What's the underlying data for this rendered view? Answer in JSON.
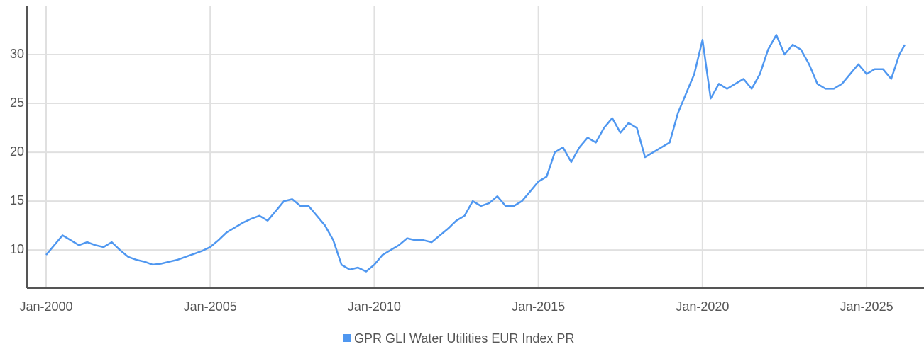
{
  "chart_data": {
    "type": "line",
    "x": [
      "2000-01",
      "2000-04",
      "2000-07",
      "2000-10",
      "2001-01",
      "2001-04",
      "2001-07",
      "2001-10",
      "2002-01",
      "2002-04",
      "2002-07",
      "2002-10",
      "2003-01",
      "2003-04",
      "2003-07",
      "2003-10",
      "2004-01",
      "2004-04",
      "2004-07",
      "2004-10",
      "2005-01",
      "2005-04",
      "2005-07",
      "2005-10",
      "2006-01",
      "2006-04",
      "2006-07",
      "2006-10",
      "2007-01",
      "2007-04",
      "2007-07",
      "2007-10",
      "2008-01",
      "2008-04",
      "2008-07",
      "2008-10",
      "2009-01",
      "2009-04",
      "2009-07",
      "2009-10",
      "2010-01",
      "2010-04",
      "2010-07",
      "2010-10",
      "2011-01",
      "2011-04",
      "2011-07",
      "2011-10",
      "2012-01",
      "2012-04",
      "2012-07",
      "2012-10",
      "2013-01",
      "2013-04",
      "2013-07",
      "2013-10",
      "2014-01",
      "2014-04",
      "2014-07",
      "2014-10",
      "2015-01",
      "2015-04",
      "2015-07",
      "2015-10",
      "2016-01",
      "2016-04",
      "2016-07",
      "2016-10",
      "2017-01",
      "2017-04",
      "2017-07",
      "2017-10",
      "2018-01",
      "2018-04",
      "2018-07",
      "2018-10",
      "2019-01",
      "2019-04",
      "2019-07",
      "2019-10",
      "2020-01",
      "2020-04",
      "2020-07",
      "2020-10",
      "2021-01",
      "2021-04",
      "2021-07",
      "2021-10",
      "2022-01",
      "2022-04",
      "2022-07",
      "2022-10",
      "2023-01",
      "2023-04",
      "2023-07",
      "2023-10",
      "2024-01",
      "2024-04",
      "2024-07",
      "2024-10",
      "2025-01",
      "2025-04",
      "2025-07",
      "2025-10",
      "2026-01",
      "2026-03"
    ],
    "series": [
      {
        "name": "GPR GLI Water Utilities EUR Index PR",
        "color": "#4f97f0",
        "values": [
          9.5,
          10.5,
          11.5,
          11.0,
          10.5,
          10.8,
          10.5,
          10.3,
          10.8,
          10.0,
          9.3,
          9.0,
          8.8,
          8.5,
          8.6,
          8.8,
          9.0,
          9.3,
          9.6,
          9.9,
          10.3,
          11.0,
          11.8,
          12.3,
          12.8,
          13.2,
          13.5,
          13.0,
          14.0,
          15.0,
          15.2,
          14.5,
          14.5,
          13.5,
          12.5,
          11.0,
          8.5,
          8.0,
          8.2,
          7.8,
          8.5,
          9.5,
          10.0,
          10.5,
          11.2,
          11.0,
          11.0,
          10.8,
          11.5,
          12.2,
          13.0,
          13.5,
          15.0,
          14.5,
          14.8,
          15.5,
          14.5,
          14.5,
          15.0,
          16.0,
          17.0,
          17.5,
          20.0,
          20.5,
          19.0,
          20.5,
          21.5,
          21.0,
          22.5,
          23.5,
          22.0,
          23.0,
          22.5,
          19.5,
          20.0,
          20.5,
          21.0,
          24.0,
          26.0,
          28.0,
          31.5,
          25.5,
          27.0,
          26.5,
          27.0,
          27.5,
          26.5,
          28.0,
          30.5,
          32.0,
          30.0,
          31.0,
          30.5,
          29.0,
          27.0,
          26.5,
          26.5,
          27.0,
          28.0,
          29.0,
          28.0,
          28.5,
          28.5,
          27.5,
          30.0,
          31.0
        ]
      }
    ],
    "xlim": [
      "1999-06",
      "2026-10"
    ],
    "xticks": [
      {
        "value": "2000-01",
        "label": "Jan-2000"
      },
      {
        "value": "2005-01",
        "label": "Jan-2005"
      },
      {
        "value": "2010-01",
        "label": "Jan-2010"
      },
      {
        "value": "2015-01",
        "label": "Jan-2015"
      },
      {
        "value": "2020-01",
        "label": "Jan-2020"
      },
      {
        "value": "2025-01",
        "label": "Jan-2025"
      }
    ],
    "ylim": [
      6.1,
      35
    ],
    "yticks": [
      10,
      15,
      20,
      25,
      30
    ],
    "grid": true,
    "legend": "bottom"
  }
}
